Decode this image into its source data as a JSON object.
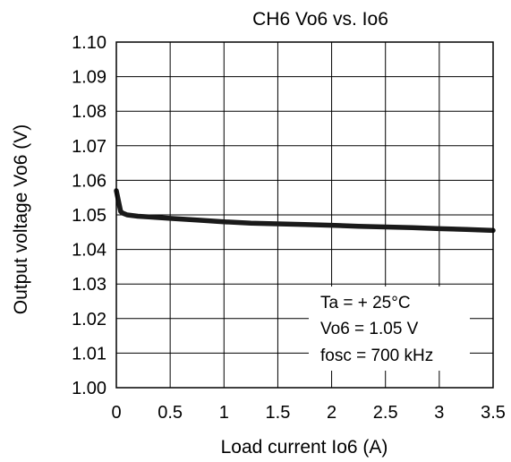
{
  "chart_data": {
    "type": "line",
    "title": "CH6 Vo6 vs. Io6",
    "xlabel": "Load current Io6 (A)",
    "ylabel": "Output voltage Vo6 (V)",
    "xlim": [
      0,
      3.5
    ],
    "ylim": [
      1.0,
      1.1
    ],
    "xticks": [
      "0",
      "0.5",
      "1",
      "1.5",
      "2",
      "2.5",
      "3",
      "3.5"
    ],
    "yticks": [
      "1.00",
      "1.01",
      "1.02",
      "1.03",
      "1.04",
      "1.05",
      "1.06",
      "1.07",
      "1.08",
      "1.09",
      "1.10"
    ],
    "grid": true,
    "series": [
      {
        "x": [
          0.0,
          0.02,
          0.04,
          0.06,
          0.1,
          0.2,
          0.3,
          0.5,
          0.75,
          1.0,
          1.25,
          1.5,
          1.75,
          2.0,
          2.25,
          2.5,
          2.75,
          3.0,
          3.25,
          3.5
        ],
        "y": [
          1.057,
          1.054,
          1.051,
          1.0505,
          1.05,
          1.0496,
          1.0494,
          1.049,
          1.0485,
          1.048,
          1.0476,
          1.0474,
          1.0472,
          1.047,
          1.0467,
          1.0465,
          1.0463,
          1.046,
          1.0458,
          1.0455
        ]
      }
    ],
    "annotations": [
      "Ta = + 25°C",
      "Vo6 = 1.05 V",
      "fosc = 700 kHz"
    ],
    "annotation_placement": "bottom-right",
    "colors": {
      "line": "#1a1a1a",
      "grid": "#000000"
    }
  }
}
